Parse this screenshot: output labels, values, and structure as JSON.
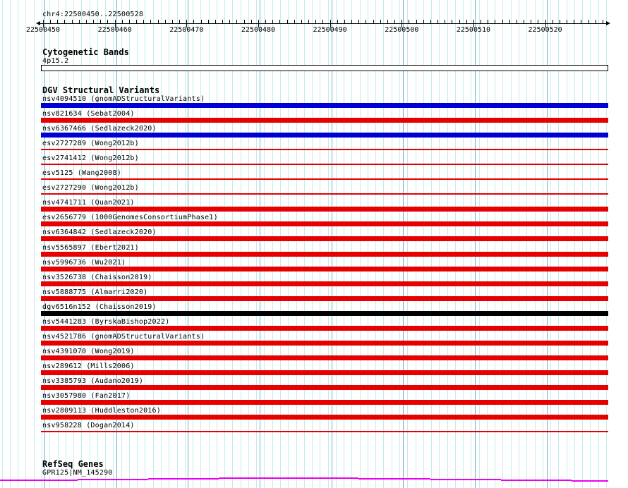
{
  "colors": {
    "background": "#FFFFFF",
    "grid_light": "#C3EDED",
    "grid_dark": "#73AECF",
    "axis": "#000000",
    "variant_red": "#E60000",
    "variant_blue": "#0000D2",
    "variant_black": "#000000",
    "gene_magenta": "#EE00EE",
    "band_fill": "#FFFFFF"
  },
  "ruler": {
    "title": "chr4:22500450..22500528",
    "chromosome": "chr4",
    "start": 22500450,
    "end": 22500528,
    "tick_labels": [
      "22500450",
      "22500460",
      "22500470",
      "22500480",
      "22500490",
      "22500500",
      "22500510",
      "22500520"
    ]
  },
  "tracks": {
    "cytobands": {
      "header": "Cytogenetic Bands",
      "band_label": "4p15.2",
      "band_stain": "white"
    },
    "dgv": {
      "header": "DGV Structural Variants",
      "variants": [
        {
          "id": "nsv4094510",
          "study": "gnomADStructuralVariants",
          "color": "blue",
          "bar": "thick"
        },
        {
          "id": "nsv821634",
          "study": "Sebat2004",
          "color": "red",
          "bar": "thick"
        },
        {
          "id": "nsv6367466",
          "study": "Sedlazeck2020",
          "color": "blue",
          "bar": "thick"
        },
        {
          "id": "esv2727289",
          "study": "Wong2012b",
          "color": "red",
          "bar": "thin"
        },
        {
          "id": "esv2741412",
          "study": "Wong2012b",
          "color": "red",
          "bar": "thin"
        },
        {
          "id": "esv5125",
          "study": "Wang2008",
          "color": "red",
          "bar": "thin"
        },
        {
          "id": "esv2727290",
          "study": "Wong2012b",
          "color": "red",
          "bar": "thin"
        },
        {
          "id": "nsv4741711",
          "study": "Quan2021",
          "color": "red",
          "bar": "thick"
        },
        {
          "id": "esv2656779",
          "study": "1000GenomesConsortiumPhase1",
          "color": "red",
          "bar": "thick"
        },
        {
          "id": "nsv6364842",
          "study": "Sedlazeck2020",
          "color": "red",
          "bar": "thick"
        },
        {
          "id": "nsv5565897",
          "study": "Ebert2021",
          "color": "red",
          "bar": "thick"
        },
        {
          "id": "nsv5996736",
          "study": "Wu2021",
          "color": "red",
          "bar": "thick"
        },
        {
          "id": "nsv3526738",
          "study": "Chaisson2019",
          "color": "red",
          "bar": "thick"
        },
        {
          "id": "nsv5888775",
          "study": "Almarri2020",
          "color": "red",
          "bar": "thick"
        },
        {
          "id": "dgv6516n152",
          "study": "Chaisson2019",
          "color": "black",
          "bar": "thick"
        },
        {
          "id": "nsv5441283",
          "study": "ByrskaBishop2022",
          "color": "red",
          "bar": "thick"
        },
        {
          "id": "nsv4521786",
          "study": "gnomADStructuralVariants",
          "color": "red",
          "bar": "thick"
        },
        {
          "id": "nsv4391070",
          "study": "Wong2019",
          "color": "red",
          "bar": "thick"
        },
        {
          "id": "nsv289612",
          "study": "Mills2006",
          "color": "red",
          "bar": "thick"
        },
        {
          "id": "nsv3385793",
          "study": "Audano2019",
          "color": "red",
          "bar": "thick"
        },
        {
          "id": "nsv3057980",
          "study": "Fan2017",
          "color": "red",
          "bar": "thick"
        },
        {
          "id": "nsv2809113",
          "study": "Huddleston2016",
          "color": "red",
          "bar": "thick"
        },
        {
          "id": "nsv958228",
          "study": "Dogan2014",
          "color": "red",
          "bar": "thin"
        }
      ]
    },
    "refseq": {
      "header": "RefSeq Genes",
      "gene_label": "GPR125|NM_145290",
      "gene_segments": [
        [
          0,
          110,
          680
        ],
        [
          110,
          210,
          679
        ],
        [
          210,
          310,
          678
        ],
        [
          310,
          508,
          677
        ],
        [
          508,
          610,
          678
        ],
        [
          610,
          710,
          679
        ],
        [
          710,
          810,
          680
        ],
        [
          810,
          862,
          681
        ]
      ]
    }
  }
}
